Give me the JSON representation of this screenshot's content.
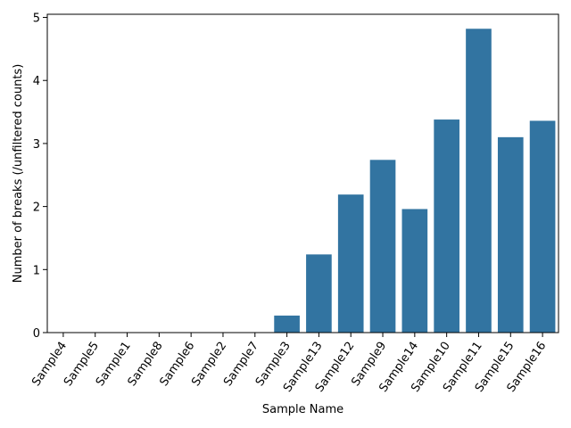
{
  "chart_data": {
    "type": "bar",
    "title": "",
    "xlabel": "Sample Name",
    "ylabel": "Number of breaks (/unfiltered counts)",
    "categories": [
      "Sample4",
      "Sample5",
      "Sample1",
      "Sample8",
      "Sample6",
      "Sample2",
      "Sample7",
      "Sample3",
      "Sample13",
      "Sample12",
      "Sample9",
      "Sample14",
      "Sample10",
      "Sample11",
      "Sample15",
      "Sample16"
    ],
    "values": [
      0,
      0,
      0,
      0,
      0,
      0,
      0,
      0.27,
      1.24,
      2.19,
      2.74,
      1.96,
      3.38,
      4.82,
      3.1,
      3.36
    ],
    "ylim": [
      0,
      5.05
    ],
    "yticks": [
      0,
      1,
      2,
      3,
      4,
      5
    ],
    "bar_color": "#3274a1",
    "grid": false,
    "legend": "none"
  }
}
